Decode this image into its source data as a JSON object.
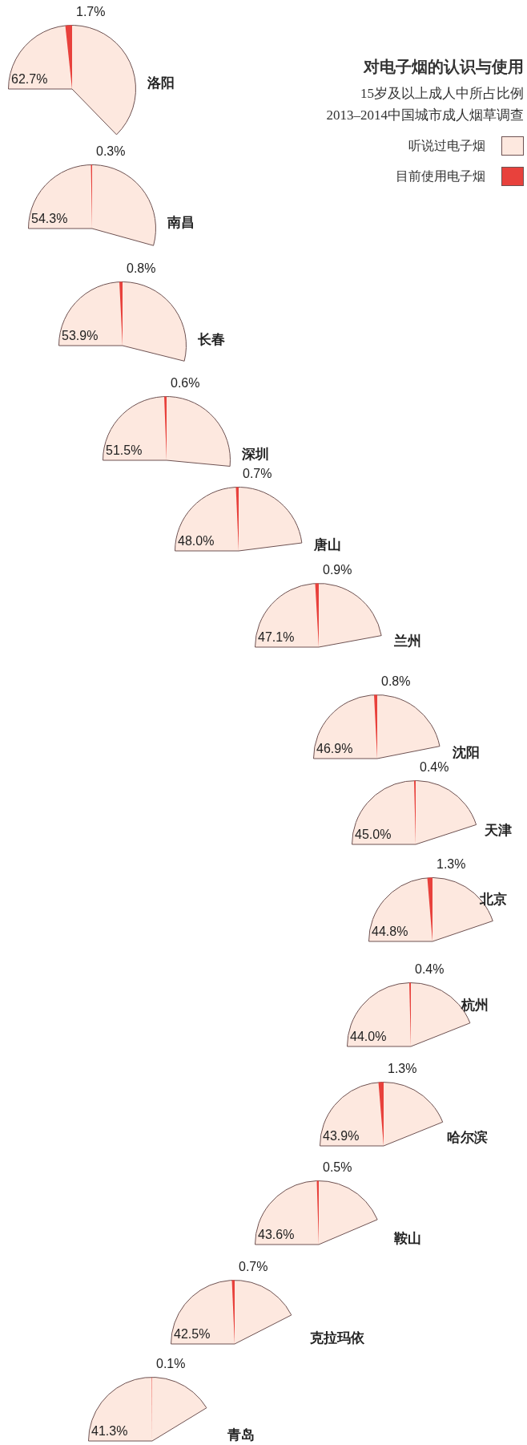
{
  "chart_data": [
    {
      "type": "other",
      "title": "对电子烟的认识与使用",
      "subtitle": "15岁及以上成人中所占比例",
      "annotations": [
        "2013–2014中国城市成人烟草调查"
      ]
    },
    {
      "type": "pie",
      "title": "洛阳",
      "categories": [
        "听说过电子烟",
        "目前使用电子烟"
      ],
      "values": [
        62.7,
        1.7
      ],
      "colors": [
        "#fde8df",
        "#e8413c"
      ],
      "value_labels": [
        "62.7%",
        "1.7%"
      ],
      "legend": "right"
    },
    {
      "type": "pie",
      "title": "南昌",
      "values": [
        54.3,
        0.3
      ],
      "colors": [
        "#fde8df",
        "#e8413c"
      ],
      "value_labels": [
        "54.3%",
        "0.3%"
      ]
    },
    {
      "type": "pie",
      "title": "长春",
      "values": [
        53.9,
        0.8
      ],
      "colors": [
        "#fde8df",
        "#e8413c"
      ],
      "value_labels": [
        "53.9%",
        "0.8%"
      ]
    },
    {
      "type": "pie",
      "title": "深圳",
      "values": [
        51.5,
        0.6
      ],
      "colors": [
        "#fde8df",
        "#e8413c"
      ],
      "value_labels": [
        "51.5%",
        "0.6%"
      ]
    },
    {
      "type": "pie",
      "title": "唐山",
      "values": [
        48.0,
        0.7
      ],
      "colors": [
        "#fde8df",
        "#e8413c"
      ],
      "value_labels": [
        "48.0%",
        "0.7%"
      ]
    },
    {
      "type": "pie",
      "title": "兰州",
      "values": [
        47.1,
        0.9
      ],
      "colors": [
        "#fde8df",
        "#e8413c"
      ],
      "value_labels": [
        "47.1%",
        "0.9%"
      ]
    },
    {
      "type": "pie",
      "title": "沈阳",
      "values": [
        46.9,
        0.8
      ],
      "colors": [
        "#fde8df",
        "#e8413c"
      ],
      "value_labels": [
        "46.9%",
        "0.8%"
      ]
    },
    {
      "type": "pie",
      "title": "天津",
      "values": [
        45.0,
        0.4
      ],
      "colors": [
        "#fde8df",
        "#e8413c"
      ],
      "value_labels": [
        "45.0%",
        "0.4%"
      ]
    },
    {
      "type": "pie",
      "title": "北京",
      "values": [
        44.8,
        1.3
      ],
      "colors": [
        "#fde8df",
        "#e8413c"
      ],
      "value_labels": [
        "44.8%",
        "1.3%"
      ]
    },
    {
      "type": "pie",
      "title": "杭州",
      "values": [
        44.0,
        0.4
      ],
      "colors": [
        "#fde8df",
        "#e8413c"
      ],
      "value_labels": [
        "44.0%",
        "0.4%"
      ]
    },
    {
      "type": "pie",
      "title": "哈尔滨",
      "values": [
        43.9,
        1.3
      ],
      "colors": [
        "#fde8df",
        "#e8413c"
      ],
      "value_labels": [
        "43.9%",
        "1.3%"
      ]
    },
    {
      "type": "pie",
      "title": "鞍山",
      "values": [
        43.6,
        0.5
      ],
      "colors": [
        "#fde8df",
        "#e8413c"
      ],
      "value_labels": [
        "43.6%",
        "0.5%"
      ]
    },
    {
      "type": "pie",
      "title": "克拉玛依",
      "values": [
        42.5,
        0.7
      ],
      "colors": [
        "#fde8df",
        "#e8413c"
      ],
      "value_labels": [
        "42.5%",
        "0.7%"
      ]
    },
    {
      "type": "pie",
      "title": "青岛",
      "values": [
        41.3,
        0.1
      ],
      "colors": [
        "#fde8df",
        "#e8413c"
      ],
      "value_labels": [
        "41.3%",
        "0.1%"
      ]
    }
  ]
}
